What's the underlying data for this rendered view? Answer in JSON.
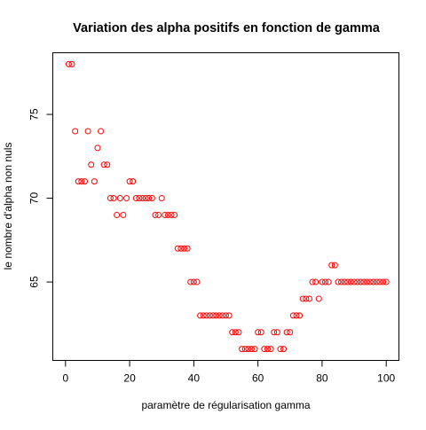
{
  "chart_data": {
    "type": "scatter",
    "title": "Variation des alpha positifs en fonction de gamma",
    "xlabel": "paramètre de régularisation gamma",
    "ylabel": "le nombre d'alpha non nuls",
    "xlim": [
      -3.96,
      103.96
    ],
    "ylim": [
      60.32,
      78.68
    ],
    "xticks": [
      0,
      20,
      40,
      60,
      80,
      100
    ],
    "yticks": [
      65,
      70,
      75
    ],
    "xtick_labels": [
      "0",
      "20",
      "40",
      "60",
      "80",
      "100"
    ],
    "ytick_labels": [
      "65",
      "70",
      "75"
    ],
    "grid": false,
    "legend": false,
    "point_color": "#ff0000",
    "marker": "open-circle",
    "x": [
      1,
      2,
      3,
      4,
      5,
      6,
      7,
      8,
      9,
      10,
      11,
      12,
      13,
      14,
      15,
      16,
      17,
      18,
      19,
      20,
      21,
      22,
      23,
      24,
      25,
      26,
      27,
      28,
      29,
      30,
      31,
      32,
      33,
      34,
      35,
      36,
      37,
      38,
      39,
      40,
      41,
      42,
      43,
      44,
      45,
      46,
      47,
      48,
      49,
      50,
      51,
      52,
      53,
      54,
      55,
      56,
      57,
      58,
      59,
      60,
      61,
      62,
      63,
      64,
      65,
      66,
      67,
      68,
      69,
      70,
      71,
      72,
      73,
      74,
      75,
      76,
      77,
      78,
      79,
      80,
      81,
      82,
      83,
      84,
      85,
      86,
      87,
      88,
      89,
      90,
      91,
      92,
      93,
      94,
      95,
      96,
      97,
      98,
      99,
      100
    ],
    "y": [
      78,
      78,
      74,
      71,
      71,
      71,
      74,
      72,
      71,
      73,
      74,
      72,
      72,
      70,
      70,
      69,
      70,
      69,
      70,
      71,
      71,
      70,
      70,
      70,
      70,
      70,
      70,
      69,
      69,
      70,
      69,
      69,
      69,
      69,
      67,
      67,
      67,
      67,
      65,
      65,
      65,
      63,
      63,
      63,
      63,
      63,
      63,
      63,
      63,
      63,
      63,
      62,
      62,
      62,
      61,
      61,
      61,
      61,
      61,
      62,
      62,
      61,
      61,
      61,
      62,
      62,
      61,
      61,
      62,
      62,
      63,
      63,
      63,
      64,
      64,
      64,
      65,
      65,
      64,
      65,
      65,
      65,
      66,
      66,
      65,
      65,
      65,
      65,
      65,
      65,
      65,
      65,
      65,
      65,
      65,
      65,
      65,
      65,
      65,
      65
    ]
  }
}
